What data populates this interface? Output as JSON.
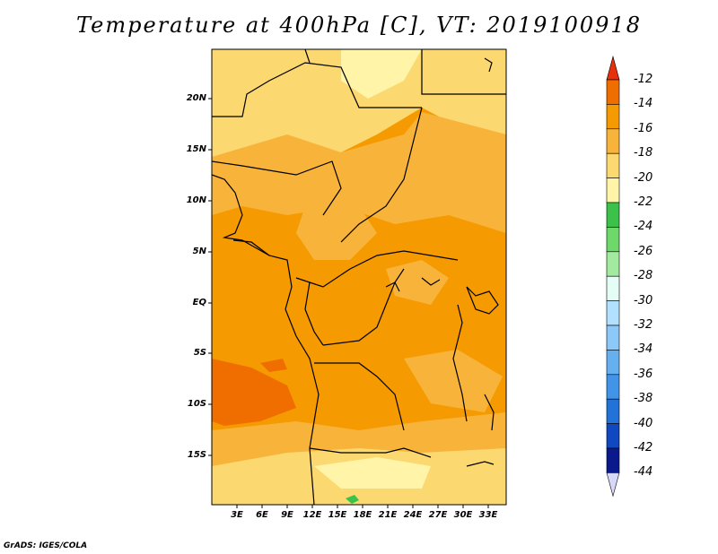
{
  "title": "Temperature at 400hPa [C], VT: 2019100918",
  "footer": "GrADS: IGES/COLA",
  "lat_labels": [
    "20N",
    "15N",
    "10N",
    "5N",
    "EQ",
    "5S",
    "10S",
    "15S"
  ],
  "lon_labels": [
    "3E",
    "6E",
    "9E",
    "12E",
    "15E",
    "18E",
    "21E",
    "24E",
    "27E",
    "30E",
    "33E"
  ],
  "colorbar": {
    "labels": [
      "-12",
      "-14",
      "-16",
      "-18",
      "-20",
      "-22",
      "-24",
      "-26",
      "-28",
      "-30",
      "-32",
      "-34",
      "-36",
      "-38",
      "-40",
      "-42",
      "-44"
    ],
    "colors": [
      "#e8300c",
      "#f06e00",
      "#f59a00",
      "#f8b43a",
      "#fbd870",
      "#fff4a8",
      "#3cc24a",
      "#6ed86a",
      "#a2eaa0",
      "#e4fef6",
      "#b2e0ff",
      "#8cc8f8",
      "#66b0f0",
      "#4294e8",
      "#2272d8",
      "#1048c0",
      "#0a1a8c"
    ],
    "top_arrow_color": "#e8300c",
    "bottom_arrow_color": "#d8d8f8"
  },
  "map_colors": {
    "level_minus14_to_minus12": "#f06e00",
    "level_minus16_to_minus14": "#f59a00",
    "level_minus18_to_minus16": "#f8b43a",
    "level_minus20_to_minus18": "#fbd870",
    "level_minus22_to_minus20": "#fff4a8",
    "level_minus24_to_minus22": "#3cc24a",
    "coastline": "#000000"
  }
}
